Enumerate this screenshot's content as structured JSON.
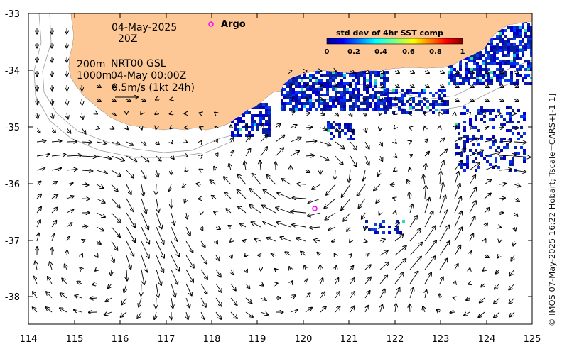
{
  "map": {
    "date_label": "04-May-2025",
    "hour_label": "20Z",
    "marker_legend": "Argo",
    "depth_label_1": "200m",
    "depth_label_2": "1000m",
    "product_label": "NRT00 GSL",
    "product_time": "04-May 00:00Z",
    "vector_scale_label": "0.5m/s (1kt 24h)",
    "colorbar": {
      "title": "std dev of 4hr SST comp",
      "ticks": [
        "0",
        "0.2",
        "0.4",
        "0.6",
        "0.8",
        "1"
      ]
    },
    "x_ticks": [
      "114",
      "115",
      "116",
      "117",
      "118",
      "119",
      "120",
      "121",
      "122",
      "123",
      "124",
      "125"
    ],
    "y_ticks": [
      "-33",
      "-34",
      "-35",
      "-36",
      "-37",
      "-38"
    ],
    "credit": "© IMOS 07-May-2025 16:22 Hobart; Tscale=CARS+[-1 1]",
    "colors": {
      "land": "#fdc896",
      "ocean": "#ffffff",
      "argo_marker": "#ff00ff",
      "sst_low": "#0a1f9e"
    }
  }
}
